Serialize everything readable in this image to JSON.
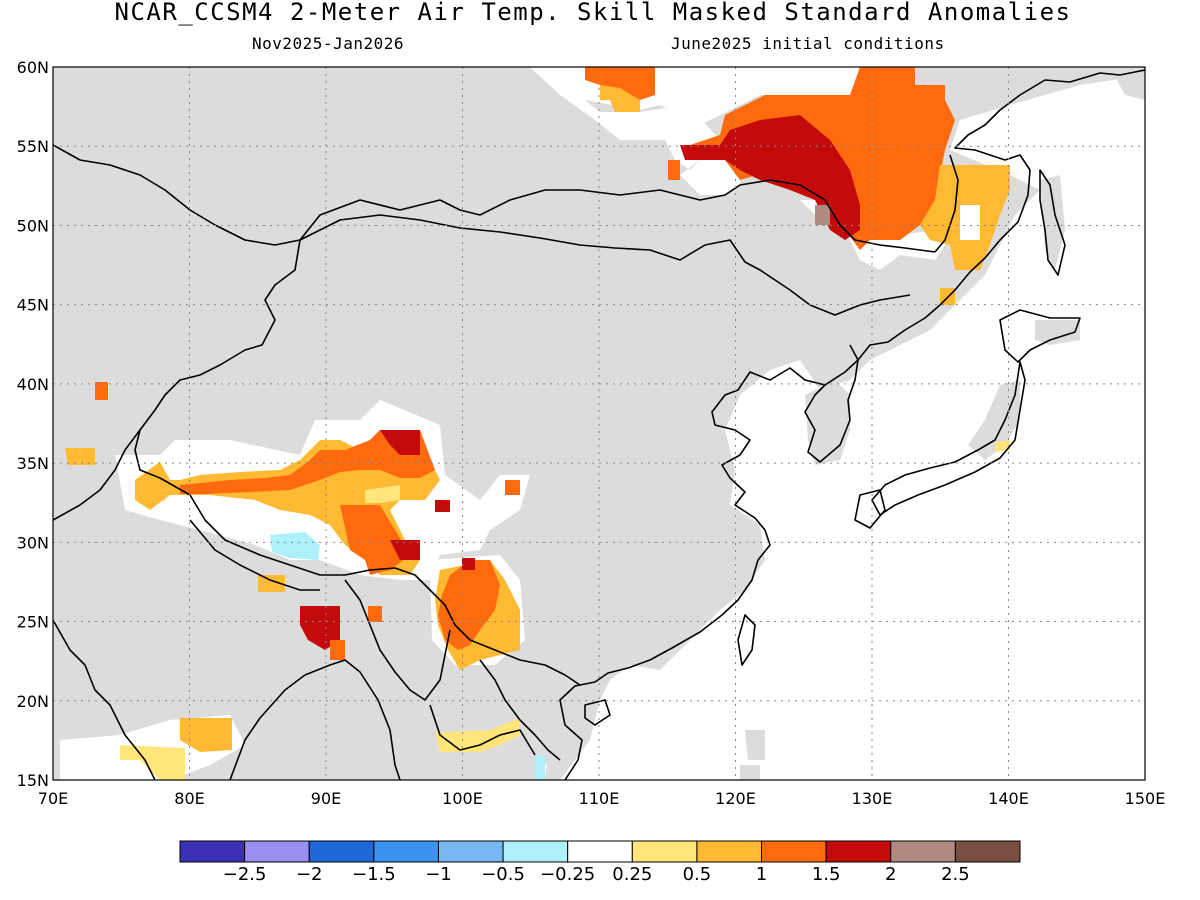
{
  "title": "NCAR_CCSM4 2-Meter Air Temp. Skill Masked Standard Anomalies",
  "subtitle_period": "Nov2025-Jan2026",
  "subtitle_ic": "June2025 initial conditions",
  "map": {
    "lon_range": [
      70,
      150
    ],
    "lat_range": [
      15,
      60
    ],
    "lon_ticks": [
      "70E",
      "80E",
      "90E",
      "100E",
      "110E",
      "120E",
      "130E",
      "140E",
      "150E"
    ],
    "lat_ticks": [
      "15N",
      "20N",
      "25N",
      "30N",
      "35N",
      "40N",
      "45N",
      "50N",
      "55N",
      "60N"
    ],
    "grid": "dotted",
    "masked_color": "#dcdcdc",
    "ocean_color": "#ffffff",
    "coastline_color": "#000000"
  },
  "colorbar": {
    "colors": [
      "#3b2fb4",
      "#9a8ef0",
      "#1f68d8",
      "#3a93ee",
      "#78b8f2",
      "#aef0fa",
      "#ffffff",
      "#ffe57a",
      "#ffb933",
      "#ff6a0f",
      "#c40a0a",
      "#b08a80",
      "#7a4e40"
    ],
    "labels": [
      "-2.5",
      "-2",
      "-1.5",
      "-1",
      "-0.5",
      "-0.25",
      "0.25",
      "0.5",
      "1",
      "1.5",
      "2",
      "2.5"
    ]
  },
  "anomaly_regions": [
    {
      "name": "northeast-china-warm",
      "level": "1.5"
    },
    {
      "name": "amur-core-warm",
      "level": "2"
    },
    {
      "name": "tibet-warm",
      "level": "0.5"
    },
    {
      "name": "yunnan-warm",
      "level": "1"
    },
    {
      "name": "south-tibet-cool",
      "level": "-0.25"
    }
  ]
}
